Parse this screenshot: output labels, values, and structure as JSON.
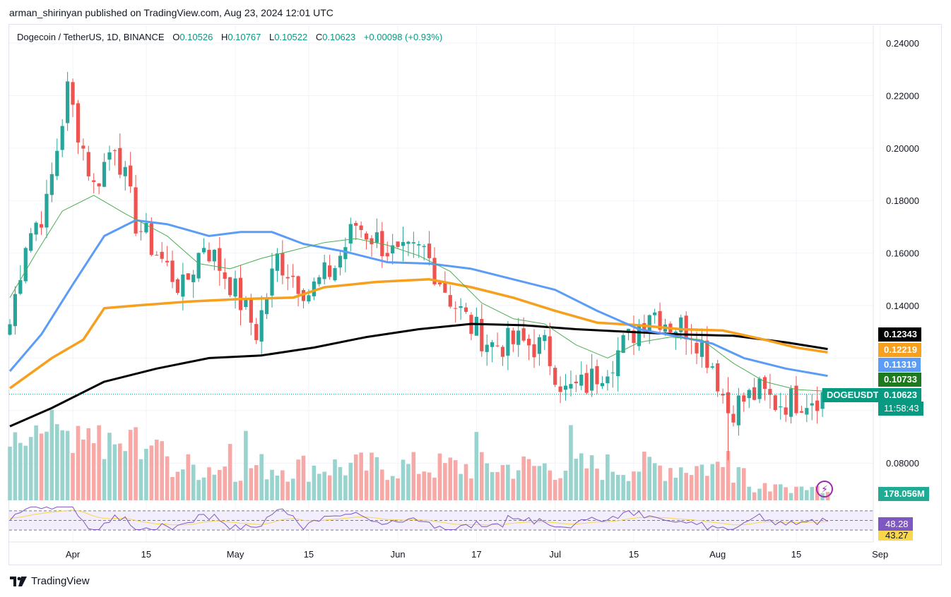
{
  "header": {
    "publisher": "arman_shirinyan published on TradingView.com, Aug 23, 2024 12:01 UTC"
  },
  "legend": {
    "symbol": "Dogecoin / TetherUS, 1D, BINANCE",
    "o_label": "O",
    "o": "0.10526",
    "h_label": "H",
    "h": "0.10767",
    "l_label": "L",
    "l": "0.10522",
    "c_label": "C",
    "c": "0.10623",
    "change": "+0.00098 (+0.93%)"
  },
  "badges": {
    "ma200": "0.12343",
    "ma100": "0.12219",
    "ma50": "0.11319",
    "ma20": "0.10733",
    "symbol": "DOGEUSDT",
    "price": "0.10623",
    "countdown": "11:58:43",
    "volume": "178.056M",
    "rsi": "48.28",
    "rsi_ma": "43.27"
  },
  "footer": {
    "brand": "TradingView"
  },
  "colors": {
    "up": "#26a69a",
    "down": "#ef5350",
    "vol_up": "#99d3cd",
    "vol_down": "#f7a9a7",
    "ma20": "#4caf50",
    "ma50": "#5b9cf6",
    "ma100": "#f7a01e",
    "ma200": "#000000",
    "rsi": "#7e57c2",
    "rsi_ma": "#f9d64a"
  },
  "chart_data": {
    "type": "candlestick",
    "title": "Dogecoin / TetherUS, 1D, BINANCE",
    "ylim": [
      0.07,
      0.245
    ],
    "y_ticks": [
      "0.24000",
      "0.22000",
      "0.20000",
      "0.18000",
      "0.16000",
      "0.14000",
      "0.08000"
    ],
    "x_ticks": [
      "Apr",
      "15",
      "May",
      "15",
      "Jun",
      "17",
      "Jul",
      "15",
      "Aug",
      "15",
      "Sep"
    ],
    "date_range": [
      "2024-03-20",
      "2024-08-23"
    ],
    "last_close": 0.10623,
    "anchors": [
      {
        "day": 0,
        "close": 0.133
      },
      {
        "day": 3,
        "close": 0.165
      },
      {
        "day": 7,
        "close": 0.178
      },
      {
        "day": 11,
        "close": 0.222
      },
      {
        "day": 16,
        "close": 0.185
      },
      {
        "day": 20,
        "close": 0.203
      },
      {
        "day": 24,
        "close": 0.172
      },
      {
        "day": 28,
        "close": 0.16
      },
      {
        "day": 33,
        "close": 0.146
      },
      {
        "day": 37,
        "close": 0.164
      },
      {
        "day": 42,
        "close": 0.149
      },
      {
        "day": 47,
        "close": 0.13
      },
      {
        "day": 51,
        "close": 0.158
      },
      {
        "day": 57,
        "close": 0.145
      },
      {
        "day": 62,
        "close": 0.155
      },
      {
        "day": 66,
        "close": 0.171
      },
      {
        "day": 70,
        "close": 0.165
      },
      {
        "day": 74,
        "close": 0.158
      },
      {
        "day": 79,
        "close": 0.161
      },
      {
        "day": 84,
        "close": 0.143
      },
      {
        "day": 88,
        "close": 0.132
      },
      {
        "day": 92,
        "close": 0.125
      },
      {
        "day": 97,
        "close": 0.126
      },
      {
        "day": 102,
        "close": 0.124
      },
      {
        "day": 106,
        "close": 0.107
      },
      {
        "day": 110,
        "close": 0.11
      },
      {
        "day": 114,
        "close": 0.118
      },
      {
        "day": 118,
        "close": 0.127
      },
      {
        "day": 122,
        "close": 0.139
      },
      {
        "day": 126,
        "close": 0.133
      },
      {
        "day": 130,
        "close": 0.131
      },
      {
        "day": 134,
        "close": 0.118
      },
      {
        "day": 137,
        "close": 0.1
      },
      {
        "day": 140,
        "close": 0.104
      },
      {
        "day": 143,
        "close": 0.107
      },
      {
        "day": 146,
        "close": 0.103
      },
      {
        "day": 150,
        "close": 0.104
      },
      {
        "day": 156,
        "close": 0.10623
      }
    ],
    "moving_averages": [
      {
        "name": "MA200",
        "last": 0.12343,
        "points": [
          [
            0,
            0.094
          ],
          [
            8,
            0.101
          ],
          [
            18,
            0.111
          ],
          [
            28,
            0.116
          ],
          [
            38,
            0.12
          ],
          [
            48,
            0.121
          ],
          [
            58,
            0.124
          ],
          [
            68,
            0.128
          ],
          [
            78,
            0.131
          ],
          [
            88,
            0.133
          ],
          [
            98,
            0.1325
          ],
          [
            108,
            0.131
          ],
          [
            118,
            0.13
          ],
          [
            128,
            0.129
          ],
          [
            138,
            0.1285
          ],
          [
            148,
            0.126
          ],
          [
            156,
            0.12343
          ]
        ]
      },
      {
        "name": "MA100",
        "last": 0.12219,
        "points": [
          [
            0,
            0.1085
          ],
          [
            8,
            0.12
          ],
          [
            14,
            0.127
          ],
          [
            18,
            0.139
          ],
          [
            24,
            0.14
          ],
          [
            34,
            0.1415
          ],
          [
            44,
            0.1425
          ],
          [
            54,
            0.143
          ],
          [
            60,
            0.147
          ],
          [
            70,
            0.149
          ],
          [
            80,
            0.15
          ],
          [
            88,
            0.147
          ],
          [
            96,
            0.143
          ],
          [
            104,
            0.138
          ],
          [
            112,
            0.1335
          ],
          [
            120,
            0.1325
          ],
          [
            128,
            0.131
          ],
          [
            136,
            0.1305
          ],
          [
            144,
            0.127
          ],
          [
            150,
            0.124
          ],
          [
            156,
            0.12219
          ]
        ]
      },
      {
        "name": "MA50",
        "last": 0.11319,
        "points": [
          [
            0,
            0.115
          ],
          [
            6,
            0.129
          ],
          [
            12,
            0.148
          ],
          [
            18,
            0.1665
          ],
          [
            24,
            0.1725
          ],
          [
            30,
            0.171
          ],
          [
            38,
            0.1665
          ],
          [
            44,
            0.168
          ],
          [
            50,
            0.168
          ],
          [
            56,
            0.1635
          ],
          [
            64,
            0.1605
          ],
          [
            72,
            0.1565
          ],
          [
            80,
            0.156
          ],
          [
            88,
            0.154
          ],
          [
            96,
            0.15
          ],
          [
            104,
            0.146
          ],
          [
            112,
            0.138
          ],
          [
            120,
            0.131
          ],
          [
            128,
            0.128
          ],
          [
            134,
            0.1255
          ],
          [
            140,
            0.12
          ],
          [
            148,
            0.116
          ],
          [
            156,
            0.11319
          ]
        ]
      },
      {
        "name": "MA20",
        "last": 0.10733,
        "points": [
          [
            0,
            0.143
          ],
          [
            5,
            0.16
          ],
          [
            10,
            0.176
          ],
          [
            16,
            0.182
          ],
          [
            22,
            0.175
          ],
          [
            30,
            0.1665
          ],
          [
            36,
            0.156
          ],
          [
            42,
            0.154
          ],
          [
            48,
            0.158
          ],
          [
            54,
            0.161
          ],
          [
            60,
            0.164
          ],
          [
            66,
            0.1655
          ],
          [
            72,
            0.163
          ],
          [
            78,
            0.159
          ],
          [
            84,
            0.153
          ],
          [
            90,
            0.141
          ],
          [
            96,
            0.135
          ],
          [
            102,
            0.133
          ],
          [
            108,
            0.125
          ],
          [
            114,
            0.12
          ],
          [
            120,
            0.126
          ],
          [
            126,
            0.128
          ],
          [
            132,
            0.127
          ],
          [
            138,
            0.118
          ],
          [
            144,
            0.111
          ],
          [
            150,
            0.108
          ],
          [
            156,
            0.10733
          ]
        ]
      }
    ],
    "volume": {
      "last": "178.056M"
    },
    "rsi": {
      "value": 48.28,
      "ma": 43.27,
      "upper": 70,
      "lower": 30
    }
  }
}
